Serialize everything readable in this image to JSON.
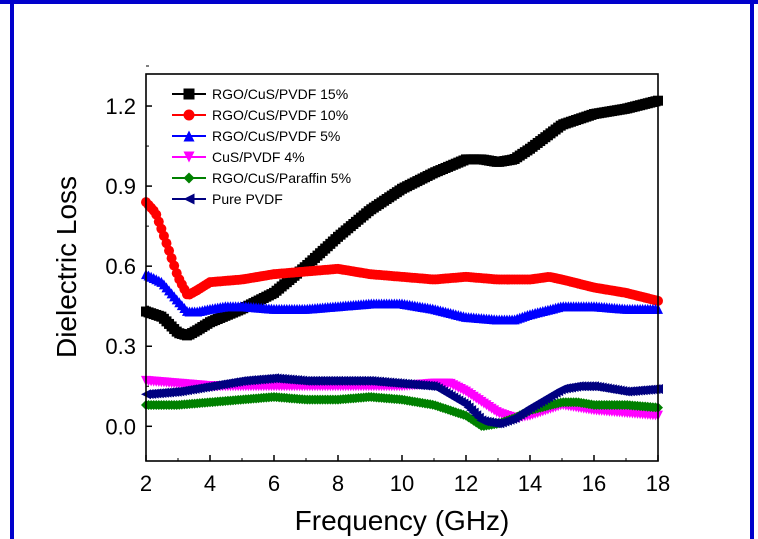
{
  "chart_data": {
    "type": "line",
    "title": "",
    "xlabel": "Frequency (GHz)",
    "ylabel": "Dielectric Loss",
    "xlim": [
      2,
      18
    ],
    "ylim": [
      -0.13,
      1.32
    ],
    "xticks": [
      2,
      4,
      6,
      8,
      10,
      12,
      14,
      16,
      18
    ],
    "yticks": [
      0.0,
      0.3,
      0.6,
      0.9,
      1.2
    ],
    "xtick_labels": [
      "2",
      "4",
      "6",
      "8",
      "10",
      "12",
      "14",
      "16",
      "18"
    ],
    "ytick_labels": [
      "0.0",
      "0.3",
      "0.6",
      "0.9",
      "1.2"
    ],
    "legend_position": "top-left",
    "series": [
      {
        "name": "RGO/CuS/PVDF 15%",
        "color": "#000000",
        "marker": "square",
        "x": [
          2,
          2.5,
          3,
          3.3,
          3.6,
          4,
          5,
          6,
          7,
          8,
          9,
          10,
          11,
          12,
          12.5,
          13,
          13.5,
          14,
          15,
          16,
          17,
          18
        ],
        "y": [
          0.43,
          0.41,
          0.35,
          0.34,
          0.36,
          0.39,
          0.44,
          0.5,
          0.6,
          0.71,
          0.81,
          0.89,
          0.95,
          1.0,
          1.0,
          0.99,
          1.0,
          1.04,
          1.13,
          1.17,
          1.19,
          1.22
        ]
      },
      {
        "name": "RGO/CuS/PVDF 10%",
        "color": "#ff0000",
        "marker": "circle",
        "x": [
          2,
          2.3,
          2.6,
          3,
          3.3,
          3.6,
          4,
          5,
          6,
          7,
          8,
          9,
          10,
          11,
          12,
          13,
          14,
          14.6,
          15,
          16,
          17,
          18
        ],
        "y": [
          0.84,
          0.8,
          0.7,
          0.56,
          0.49,
          0.51,
          0.54,
          0.55,
          0.57,
          0.58,
          0.59,
          0.57,
          0.56,
          0.55,
          0.56,
          0.55,
          0.55,
          0.56,
          0.55,
          0.52,
          0.5,
          0.47
        ]
      },
      {
        "name": "RGO/CuS/PVDF 5%",
        "color": "#0000ff",
        "marker": "triangle-up",
        "x": [
          2,
          2.5,
          3,
          3.3,
          3.6,
          4,
          4.5,
          5,
          6,
          7,
          8,
          9,
          10,
          11,
          12,
          13,
          13.5,
          14,
          15,
          16,
          17,
          18
        ],
        "y": [
          0.57,
          0.54,
          0.47,
          0.43,
          0.43,
          0.44,
          0.45,
          0.45,
          0.44,
          0.44,
          0.45,
          0.46,
          0.46,
          0.44,
          0.41,
          0.4,
          0.4,
          0.42,
          0.45,
          0.45,
          0.44,
          0.44
        ]
      },
      {
        "name": "CuS/PVDF 4%",
        "color": "#ff00ff",
        "marker": "triangle-down",
        "x": [
          2,
          3,
          4,
          5,
          6,
          7,
          8,
          9,
          10,
          11,
          11.5,
          12,
          12.5,
          13,
          13.5,
          14,
          15,
          16,
          17,
          18
        ],
        "y": [
          0.17,
          0.16,
          0.15,
          0.15,
          0.15,
          0.15,
          0.15,
          0.15,
          0.15,
          0.16,
          0.16,
          0.13,
          0.09,
          0.05,
          0.03,
          0.04,
          0.08,
          0.06,
          0.05,
          0.04
        ]
      },
      {
        "name": "RGO/CuS/Paraffin 5%",
        "color": "#008000",
        "marker": "diamond",
        "x": [
          2,
          3,
          4,
          5,
          6,
          7,
          8,
          9,
          10,
          11,
          12,
          12.5,
          13,
          13.5,
          14,
          15,
          15.5,
          16,
          17,
          18
        ],
        "y": [
          0.08,
          0.08,
          0.09,
          0.1,
          0.11,
          0.1,
          0.1,
          0.11,
          0.1,
          0.08,
          0.04,
          0.0,
          0.01,
          0.03,
          0.06,
          0.09,
          0.09,
          0.08,
          0.08,
          0.07
        ]
      },
      {
        "name": "Pure PVDF",
        "color": "#000080",
        "marker": "triangle-left",
        "x": [
          2,
          3,
          4,
          5,
          6,
          7,
          8,
          9,
          10,
          11,
          12,
          12.5,
          13,
          13.5,
          14,
          15,
          15.5,
          16,
          17,
          18
        ],
        "y": [
          0.12,
          0.13,
          0.15,
          0.17,
          0.18,
          0.17,
          0.17,
          0.17,
          0.16,
          0.15,
          0.08,
          0.02,
          0.01,
          0.03,
          0.07,
          0.14,
          0.15,
          0.15,
          0.13,
          0.14
        ]
      }
    ]
  }
}
